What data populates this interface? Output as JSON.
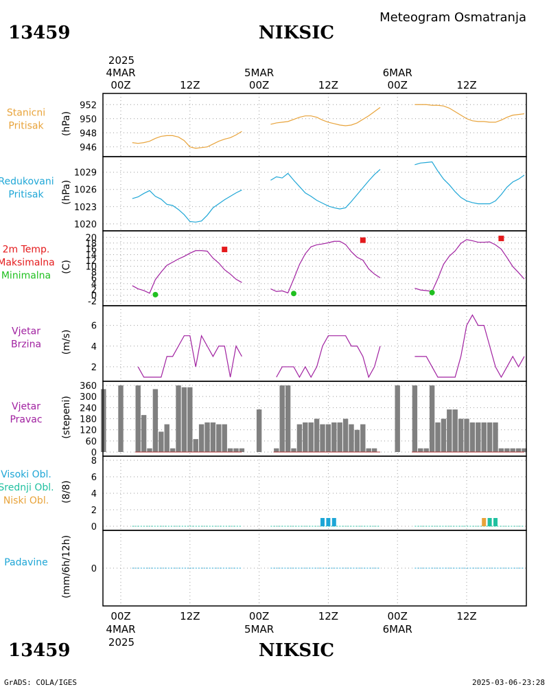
{
  "header": {
    "station_id": "13459",
    "station_name": "NIKSIC",
    "product": "Meteogram Osmatranja",
    "footer_left": "GrADS: COLA/IGES",
    "footer_right": "2025-03-06-23:28"
  },
  "colors": {
    "orange": "#e8a33a",
    "cyan": "#1ea6d6",
    "red": "#e41a1c",
    "green": "#20c020",
    "purple": "#a020a0",
    "teal": "#20c0a0",
    "bar": "#808080",
    "grid": "#999999"
  },
  "time_axis": {
    "year": "2025",
    "top_ticks": [
      {
        "h": 0,
        "label": "00Z",
        "date": "4MAR"
      },
      {
        "h": 12,
        "label": "12Z"
      },
      {
        "h": 24,
        "label": "00Z",
        "date": "5MAR"
      },
      {
        "h": 36,
        "label": "12Z"
      },
      {
        "h": 48,
        "label": "00Z",
        "date": "6MAR"
      },
      {
        "h": 60,
        "label": "12Z"
      }
    ]
  },
  "panels": [
    {
      "id": "pressure",
      "labels": [
        "Stanicni",
        "Pritisak"
      ],
      "unit": "(hPa)",
      "label_color": "#e8a33a",
      "ticks": [
        "952",
        "950",
        "948",
        "946"
      ]
    },
    {
      "id": "mslp",
      "labels": [
        "Redukovani",
        "Pritisak"
      ],
      "unit": "(hPa)",
      "label_color": "#1ea6d6",
      "ticks": [
        "1029",
        "1026",
        "1023",
        "1020"
      ]
    },
    {
      "id": "temp",
      "labels": [
        "2m Temp.",
        "Maksimalna",
        "Minimalna"
      ],
      "label_colors": [
        "#e41a1c",
        "#e41a1c",
        "#20c020"
      ],
      "unit": "(C)",
      "ticks": [
        "20",
        "18",
        "16",
        "14",
        "12",
        "10",
        "8",
        "6",
        "4",
        "2",
        "0",
        "-2"
      ]
    },
    {
      "id": "wind",
      "labels": [
        "Vjetar",
        "Brzina"
      ],
      "unit": "(m/s)",
      "label_color": "#a020a0",
      "ticks": [
        "6",
        "4",
        "2"
      ]
    },
    {
      "id": "wdir",
      "labels": [
        "Vjetar",
        "Pravac"
      ],
      "unit": "(stepeni)",
      "label_color": "#a020a0",
      "ticks": [
        "360",
        "300",
        "240",
        "180",
        "120",
        "60",
        "0"
      ]
    },
    {
      "id": "clouds",
      "labels": [
        "Visoki Obl.",
        "Srednji Obl.",
        "Niski Obl."
      ],
      "label_colors": [
        "#1ea6d6",
        "#20c0a0",
        "#e8a33a"
      ],
      "unit": "(8/8)",
      "ticks": [
        "8",
        "6",
        "4",
        "2",
        "0"
      ]
    },
    {
      "id": "precip",
      "labels": [
        "Padavine"
      ],
      "unit": "(mm/6h/12h)",
      "label_color": "#1ea6d6",
      "ticks": [
        "0"
      ]
    }
  ],
  "chart_data": {
    "type": "line",
    "x_unit": "hours from 2025-03-04 00Z",
    "station_pressure": {
      "ylim": [
        945.2,
        953.0
      ],
      "segments": [
        {
          "x": [
            2,
            3,
            4,
            5,
            6,
            7,
            8,
            9,
            10,
            11,
            12,
            13,
            14,
            15,
            16,
            17,
            18,
            19,
            20,
            21
          ],
          "y": [
            946.6,
            946.5,
            946.6,
            946.8,
            947.2,
            947.5,
            947.6,
            947.6,
            947.4,
            946.9,
            946.0,
            945.8,
            945.9,
            946.0,
            946.4,
            946.8,
            947.1,
            947.3,
            947.7,
            948.2
          ]
        },
        {
          "x": [
            26,
            27,
            28,
            29,
            30,
            31,
            32,
            33,
            34,
            35,
            36,
            37,
            38,
            39,
            40,
            41,
            42,
            43,
            44,
            45
          ],
          "y": [
            949.2,
            949.4,
            949.5,
            949.6,
            949.9,
            950.2,
            950.4,
            950.4,
            950.2,
            949.8,
            949.5,
            949.3,
            949.1,
            949.0,
            949.1,
            949.4,
            949.9,
            950.4,
            951.0,
            951.6
          ]
        },
        {
          "x": [
            51,
            52,
            53,
            54,
            55,
            56,
            57,
            58,
            59,
            60,
            61,
            62,
            63,
            64,
            65,
            66,
            67,
            68,
            69,
            70
          ],
          "y": [
            952.0,
            952.0,
            952.0,
            951.9,
            951.9,
            951.8,
            951.5,
            951.0,
            950.5,
            950.0,
            949.7,
            949.6,
            949.6,
            949.5,
            949.5,
            949.8,
            950.2,
            950.5,
            950.6,
            950.7
          ]
        }
      ]
    },
    "reduced_pressure": {
      "ylim": [
        1019.5,
        1031.0
      ],
      "segments": [
        {
          "x": [
            2,
            3,
            4,
            5,
            6,
            7,
            8,
            9,
            10,
            11,
            12,
            13,
            14,
            15,
            16,
            17,
            18,
            19,
            20,
            21
          ],
          "y": [
            1024.4,
            1024.7,
            1025.3,
            1025.8,
            1024.8,
            1024.3,
            1023.4,
            1023.2,
            1022.5,
            1021.6,
            1020.4,
            1020.3,
            1020.5,
            1021.5,
            1022.8,
            1023.5,
            1024.2,
            1024.8,
            1025.4,
            1025.9
          ]
        },
        {
          "x": [
            26,
            27,
            28,
            29,
            30,
            31,
            32,
            33,
            34,
            35,
            36,
            37,
            38,
            39,
            40,
            41,
            42,
            43,
            44,
            45
          ],
          "y": [
            1027.6,
            1028.2,
            1028.0,
            1028.8,
            1027.6,
            1026.5,
            1025.4,
            1024.8,
            1024.1,
            1023.6,
            1023.1,
            1022.8,
            1022.6,
            1022.8,
            1023.9,
            1025.1,
            1026.3,
            1027.5,
            1028.6,
            1029.5
          ]
        },
        {
          "x": [
            51,
            52,
            53,
            54,
            55,
            56,
            57,
            58,
            59,
            60,
            61,
            62,
            63,
            64,
            65,
            66,
            67,
            68,
            69,
            70
          ],
          "y": [
            1030.3,
            1030.6,
            1030.7,
            1030.8,
            1029.2,
            1027.8,
            1026.8,
            1025.6,
            1024.6,
            1024.0,
            1023.7,
            1023.5,
            1023.5,
            1023.5,
            1024.0,
            1025.1,
            1026.4,
            1027.3,
            1027.8,
            1028.5
          ]
        }
      ]
    },
    "temperature": {
      "ylim": [
        -2.2,
        20.8
      ],
      "segments": [
        {
          "x": [
            2,
            3,
            4,
            5,
            6,
            7,
            8,
            9,
            10,
            11,
            12,
            13,
            14,
            15,
            16,
            17,
            18,
            19,
            20,
            21
          ],
          "y": [
            3.3,
            2.2,
            1.6,
            0.7,
            5.4,
            8.0,
            10.3,
            11.4,
            12.5,
            13.4,
            14.5,
            15.4,
            15.4,
            15.2,
            12.8,
            11.1,
            8.8,
            7.3,
            5.5,
            4.4
          ]
        },
        {
          "x": [
            26,
            27,
            28,
            29,
            30,
            31,
            32,
            33,
            34,
            35,
            36,
            37,
            38,
            39,
            40,
            41,
            42,
            43,
            44,
            45
          ],
          "y": [
            2.2,
            1.3,
            1.5,
            0.8,
            5.6,
            10.6,
            14.3,
            16.7,
            17.4,
            17.7,
            18.1,
            18.6,
            18.6,
            17.5,
            15.0,
            13.1,
            12.1,
            9.1,
            7.3,
            6.0
          ]
        },
        {
          "x": [
            51,
            52,
            53,
            54,
            55,
            56,
            57,
            58,
            59,
            60,
            61,
            62,
            63,
            64,
            65,
            66,
            67,
            68,
            69,
            70
          ],
          "y": [
            2.4,
            1.8,
            1.6,
            1.3,
            5.7,
            10.7,
            13.5,
            15.3,
            17.9,
            19.2,
            18.8,
            18.3,
            18.3,
            18.4,
            17.4,
            15.9,
            13.0,
            9.9,
            7.8,
            5.6
          ]
        }
      ],
      "max_points": [
        {
          "x": 18,
          "y": 15.8
        },
        {
          "x": 42,
          "y": 19.0
        },
        {
          "x": 66,
          "y": 19.6
        }
      ],
      "min_points": [
        {
          "x": 6,
          "y": 0.2
        },
        {
          "x": 30,
          "y": 0.6
        },
        {
          "x": 54,
          "y": 0.9
        }
      ]
    },
    "wind_speed": {
      "ylim": [
        1.0,
        7.5
      ],
      "segments": [
        {
          "x": [
            3,
            4,
            5,
            6,
            7,
            8,
            9,
            10,
            11,
            12,
            13,
            14,
            15,
            16,
            17,
            18,
            19,
            20,
            21
          ],
          "y": [
            2,
            1,
            1,
            1,
            1,
            3,
            3,
            4,
            5,
            5,
            2,
            5,
            4,
            3,
            4,
            4,
            1,
            4,
            3
          ]
        },
        {
          "x": [
            27,
            28,
            29,
            30,
            31,
            32,
            33,
            34,
            35,
            36,
            37,
            38,
            39,
            40,
            41,
            42,
            43,
            44,
            45
          ],
          "y": [
            1,
            2,
            2,
            2,
            1,
            2,
            1,
            2,
            4,
            5,
            5,
            5,
            5,
            4,
            4,
            3,
            1,
            2,
            4
          ]
        },
        {
          "x": [
            51,
            52,
            53,
            54,
            55,
            56,
            57,
            58,
            59,
            60,
            61,
            62,
            63,
            64,
            65,
            66,
            67,
            68,
            69,
            70
          ],
          "y": [
            3,
            3,
            3,
            2,
            1,
            1,
            1,
            1,
            3,
            6,
            7,
            6,
            6,
            4,
            2,
            1,
            2,
            3,
            2,
            3
          ]
        }
      ]
    },
    "wind_direction": {
      "ylim": [
        0,
        360
      ],
      "x": [
        -3,
        0,
        3,
        4,
        5,
        6,
        7,
        8,
        9,
        10,
        11,
        12,
        13,
        14,
        15,
        16,
        17,
        18,
        19,
        20,
        21,
        24,
        27,
        28,
        29,
        30,
        31,
        32,
        33,
        34,
        35,
        36,
        37,
        38,
        39,
        40,
        41,
        42,
        43,
        44,
        48,
        51,
        52,
        53,
        54,
        55,
        56,
        57,
        58,
        59,
        60,
        61,
        62,
        63,
        64,
        65,
        66,
        67,
        68,
        69,
        70
      ],
      "values": [
        340,
        360,
        360,
        200,
        20,
        340,
        110,
        150,
        20,
        360,
        350,
        350,
        70,
        150,
        160,
        160,
        150,
        150,
        20,
        20,
        20,
        230,
        20,
        360,
        360,
        20,
        150,
        160,
        160,
        180,
        150,
        150,
        160,
        160,
        180,
        150,
        120,
        150,
        20,
        20,
        360,
        360,
        20,
        20,
        360,
        160,
        180,
        230,
        230,
        180,
        180,
        160,
        160,
        160,
        160,
        160,
        20,
        20,
        20,
        20,
        20
      ]
    },
    "clouds": {
      "ylim": [
        0,
        8
      ],
      "bars": [
        {
          "x": 35,
          "value": 1,
          "layer": "high"
        },
        {
          "x": 36,
          "value": 1,
          "layer": "high"
        },
        {
          "x": 37,
          "value": 1,
          "layer": "high"
        },
        {
          "x": 63,
          "value": 1,
          "layer": "low"
        },
        {
          "x": 64,
          "value": 1,
          "layer": "mid"
        },
        {
          "x": 65,
          "value": 1,
          "layer": "mid"
        }
      ]
    },
    "precipitation": {
      "ylim": [
        -1,
        1
      ],
      "values_note": "all 0"
    }
  }
}
